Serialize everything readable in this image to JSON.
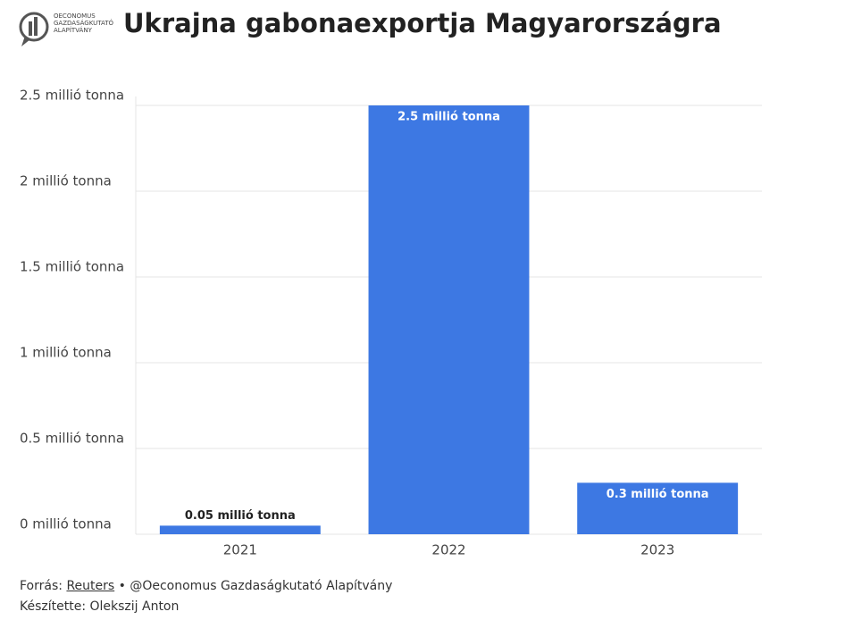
{
  "chart_data": {
    "type": "bar",
    "logo": [
      "OECONOMUS",
      "GAZDASÁGKUTATÓ",
      "ALAPÍTVÁNY"
    ],
    "title": "Ukrajna gabonaexportja Magyarországra",
    "categories": [
      "2021",
      "2022",
      "2023"
    ],
    "values": [
      0.05,
      2.5,
      0.3
    ],
    "value_labels": [
      "0.05 millió tonna",
      "2.5 millió tonna",
      "0.3 millió tonna"
    ],
    "color": "#3d78e3",
    "ylim": [
      0,
      2.5
    ],
    "yticks": [
      {
        "value": 0,
        "label": "0 millió tonna"
      },
      {
        "value": 0.5,
        "label": "0.5 millió tonna"
      },
      {
        "value": 1,
        "label": "1 millió tonna"
      },
      {
        "value": 1.5,
        "label": "1.5 millió tonna"
      },
      {
        "value": 2,
        "label": "2 millió tonna"
      },
      {
        "value": 2.5,
        "label": "2.5 millió tonna"
      }
    ],
    "grid": true,
    "source": {
      "prefix": "Forrás:",
      "link": "Reuters",
      "suffix": "• @Oeconomus Gazdaságkutató Alapítvány"
    },
    "credit": "Készítette: Olekszij Anton"
  }
}
